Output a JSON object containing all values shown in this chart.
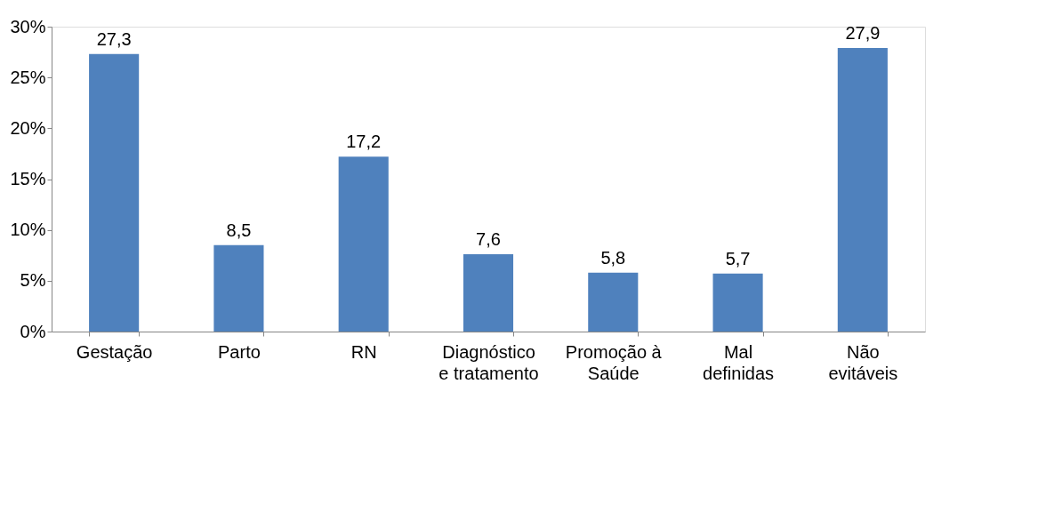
{
  "chart_data": {
    "type": "bar",
    "categories": [
      "Gestação",
      "Parto",
      "RN",
      "Diagnóstico\ne tratamento",
      "Promoção à\nSaúde",
      "Mal\ndefinidas",
      "Não\nevitáveis"
    ],
    "values": [
      27.3,
      8.5,
      17.2,
      7.6,
      5.8,
      5.7,
      27.9
    ],
    "value_labels": [
      "27,3",
      "8,5",
      "17,2",
      "7,6",
      "5,8",
      "5,7",
      "27,9"
    ],
    "color": "#4f81bd",
    "ylim": [
      0,
      30
    ],
    "yticks": [
      {
        "value": 0,
        "label": "0%"
      },
      {
        "value": 5,
        "label": "5%"
      },
      {
        "value": 10,
        "label": "10%"
      },
      {
        "value": 15,
        "label": "15%"
      },
      {
        "value": 20,
        "label": "20%"
      },
      {
        "value": 25,
        "label": "25%"
      },
      {
        "value": 30,
        "label": "30%"
      }
    ],
    "grid": false
  }
}
